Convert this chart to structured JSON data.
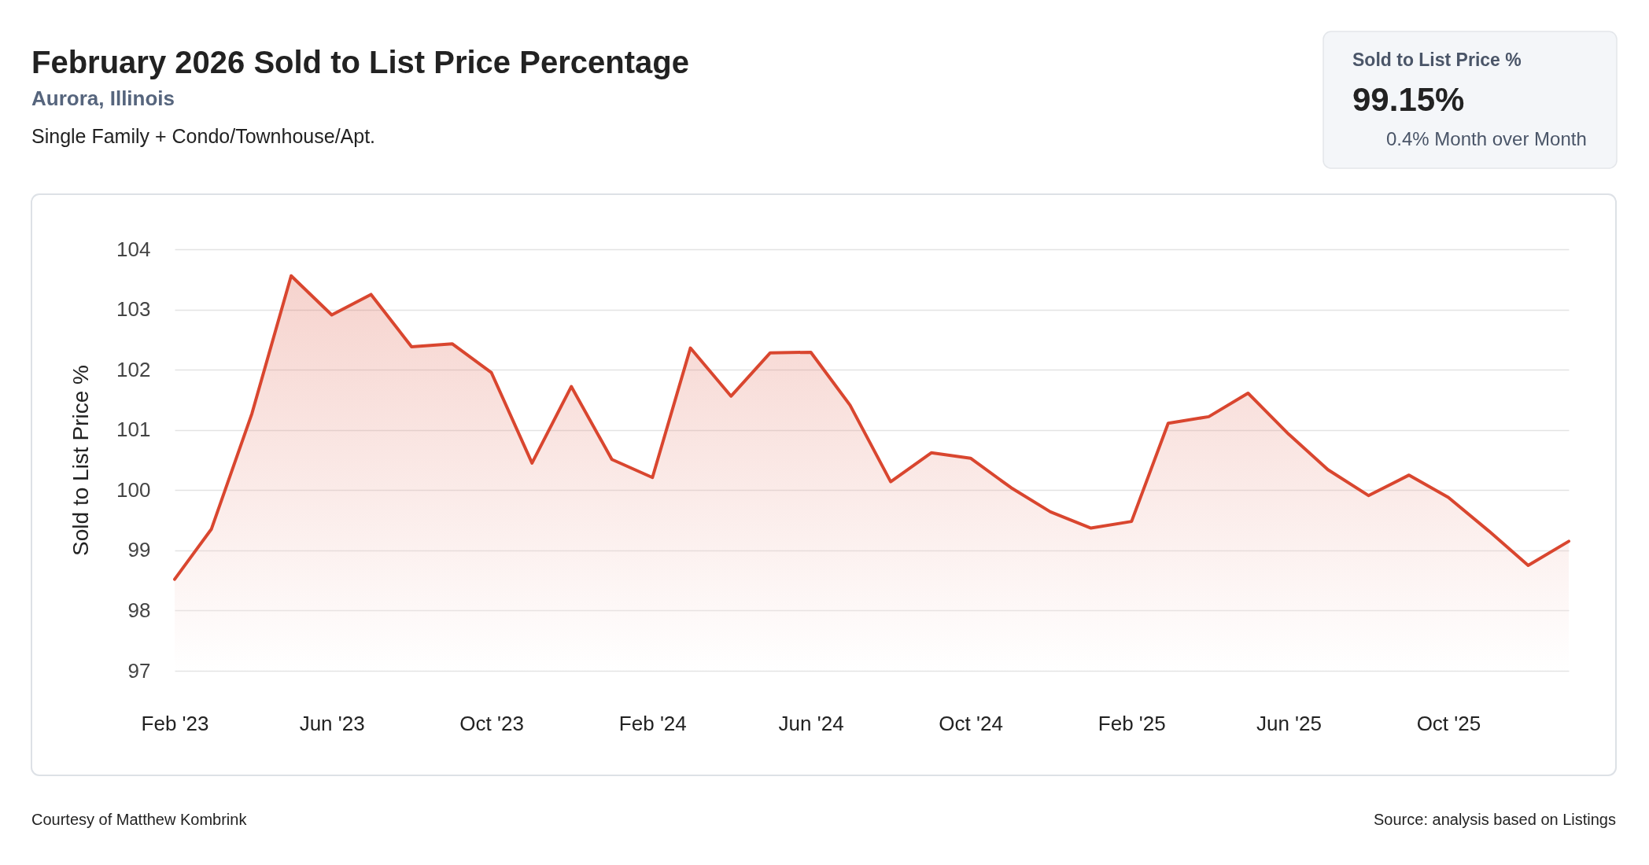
{
  "chart_data": {
    "type": "area",
    "title": "February 2026 Sold to List Price Percentage",
    "subtitle": "Aurora, Illinois",
    "ylabel": "Sold to List Price %",
    "annotations": [
      "Single Family + Condo/Townhouse/Apt.",
      "Sold to List Price %",
      "99.15%",
      "0.4% Month over Month",
      "Courtesy of Matthew Kombrink",
      "Source: analysis based on Listings"
    ],
    "x": [
      "2023-02",
      "2023-03",
      "2023-04",
      "2023-05",
      "2023-06",
      "2023-07",
      "2023-08",
      "2023-09",
      "2023-10",
      "2023-11",
      "2023-12",
      "2024-01",
      "2024-02",
      "2024-03",
      "2024-04",
      "2024-05",
      "2024-06",
      "2024-07",
      "2024-08",
      "2024-09",
      "2024-10",
      "2024-11",
      "2024-12",
      "2025-01",
      "2025-02",
      "2025-03",
      "2025-04",
      "2025-05",
      "2025-06",
      "2025-07",
      "2025-08",
      "2025-09",
      "2025-10",
      "2025-11",
      "2025-12",
      "2026-01"
    ],
    "series": [
      {
        "color": "#d9462f",
        "values": [
          98.52,
          99.35,
          101.27,
          103.56,
          102.91,
          103.25,
          102.38,
          102.43,
          101.95,
          100.45,
          101.72,
          100.51,
          100.21,
          102.36,
          101.56,
          102.28,
          102.29,
          101.41,
          100.14,
          100.62,
          100.53,
          100.04,
          99.64,
          99.37,
          99.48,
          101.11,
          101.22,
          101.61,
          100.93,
          100.34,
          99.91,
          100.25,
          99.88,
          99.32,
          98.75,
          99.15
        ]
      }
    ],
    "xlim": [
      "2023-02",
      "2026-01"
    ],
    "xticks": [
      {
        "value": "2023-02",
        "label": "Feb '23"
      },
      {
        "value": "2023-06",
        "label": "Jun '23"
      },
      {
        "value": "2023-10",
        "label": "Oct '23"
      },
      {
        "value": "2024-02",
        "label": "Feb '24"
      },
      {
        "value": "2024-06",
        "label": "Jun '24"
      },
      {
        "value": "2024-10",
        "label": "Oct '24"
      },
      {
        "value": "2025-02",
        "label": "Feb '25"
      },
      {
        "value": "2025-06",
        "label": "Jun '25"
      },
      {
        "value": "2025-10",
        "label": "Oct '25"
      }
    ],
    "ylim": [
      97,
      104
    ],
    "yticks": [
      97,
      98,
      99,
      100,
      101,
      102,
      103,
      104
    ],
    "grid": "y"
  }
}
